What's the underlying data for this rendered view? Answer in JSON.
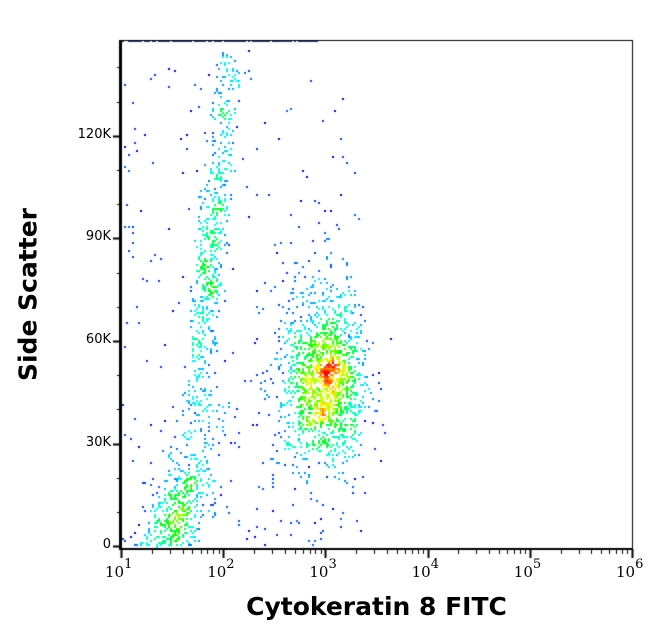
{
  "chart_data": {
    "type": "scatter",
    "subtype": "density-dot-plot",
    "xlabel": "Cytokeratin 8 FITC",
    "ylabel": "Side Scatter",
    "x_scale": "log",
    "xlim": [
      10,
      1000000
    ],
    "ylim": [
      -500,
      148000
    ],
    "x_ticks": [
      {
        "base": "10",
        "exp": "1"
      },
      {
        "base": "10",
        "exp": "2"
      },
      {
        "base": "10",
        "exp": "3"
      },
      {
        "base": "10",
        "exp": "4"
      },
      {
        "base": "10",
        "exp": "5"
      },
      {
        "base": "10",
        "exp": "6"
      }
    ],
    "y_ticks": [
      {
        "value": 0,
        "label": "0"
      },
      {
        "value": 30000,
        "label": "30K"
      },
      {
        "value": 60000,
        "label": "60K"
      },
      {
        "value": 90000,
        "label": "90K"
      },
      {
        "value": 120000,
        "label": "120K"
      }
    ],
    "colormap": [
      "#0000ff",
      "#00ffff",
      "#00ff00",
      "#ffff00",
      "#ff0000"
    ],
    "grid": false,
    "populations": [
      {
        "x_center": 1000,
        "y_center": 47000,
        "log_x_sd": 0.2,
        "y_sd": 11000,
        "weight": 0.5
      },
      {
        "x_center": 75,
        "y_center": 85000,
        "log_x_sd": 0.07,
        "y_sd": 20000,
        "weight": 0.2
      },
      {
        "x_center": 35,
        "y_center": 9000,
        "log_x_sd": 0.15,
        "y_sd": 8000,
        "weight": 0.18
      }
    ]
  }
}
